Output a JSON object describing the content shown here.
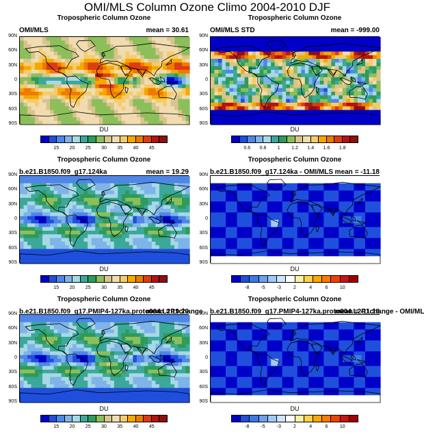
{
  "figure_title": "OMI/MLS Column Ozone Climo 2004-2010 DJF",
  "panels": [
    {
      "title": "Tropospheric Column Ozone",
      "left": "OMI/MLS",
      "right": "mean =  30.61",
      "units": "DU",
      "scale": "a",
      "pattern": "obs"
    },
    {
      "title": "Tropospheric Column Ozone",
      "left": "OMI/MLS STD",
      "right": "mean = -999.00",
      "units": "DU",
      "scale": "b",
      "pattern": "std"
    },
    {
      "title": "Tropospheric Column Ozone",
      "left": "b.e21.B1850.f09_g17.124ka",
      "right": "mean =  19.29",
      "units": "DU",
      "scale": "a",
      "pattern": "model"
    },
    {
      "title": "Tropospheric Column Ozone",
      "left": "b.e21.B1850.f09_g17.124ka - OMI/MLS",
      "right": "mean = -11.18",
      "units": "DU",
      "scale": "c",
      "pattern": "diff"
    },
    {
      "title": "Tropospheric Column Ozone",
      "left": "b.e21.B1850.f09_g17.PMIP4-127ka.proto004.L2P1change",
      "right": "mean =  19.29",
      "units": "DU",
      "scale": "a",
      "pattern": "model"
    },
    {
      "title": "Tropospheric Column Ozone",
      "left": "b.e21.B1850.f09_g17.PMIP4-127ka.proto004.L2P1change - OMI/ML",
      "right": "mean = -11.18",
      "units": "DU",
      "scale": "c",
      "pattern": "diff"
    }
  ],
  "lat_labels": [
    "90N",
    "60N",
    "30N",
    "0",
    "30S",
    "60S",
    "90S"
  ],
  "colorbars": {
    "a": {
      "labels": [
        "15",
        "20",
        "25",
        "30",
        "35",
        "40",
        "45"
      ],
      "colors": [
        "#0000c8",
        "#1f4fdc",
        "#4f86e8",
        "#7fb4e8",
        "#a8d8e6",
        "#3ca89a",
        "#2f9a5a",
        "#8cbf5a",
        "#d8c48c",
        "#f0dcb0",
        "#f5cc6a",
        "#f5a800",
        "#f07a00",
        "#dc3c14",
        "#b41414",
        "#8c1010"
      ]
    },
    "b": {
      "labels": [
        "0.6",
        "0.8",
        "1",
        "1.2",
        "1.4",
        "1.6",
        "1.8"
      ],
      "colors": [
        "#0000c8",
        "#1f4fdc",
        "#4f86e8",
        "#7fb4e8",
        "#a8d8e6",
        "#3ca89a",
        "#2f9a5a",
        "#8cbf5a",
        "#d8c48c",
        "#f0dcb0",
        "#f5cc6a",
        "#f5a800",
        "#f07a00",
        "#dc3c14",
        "#b41414",
        "#8c1010"
      ]
    },
    "c": {
      "labels": [
        "-8",
        "-5",
        "-3",
        "2",
        "4",
        "6",
        "10"
      ],
      "colors": [
        "#0000c8",
        "#1f50dc",
        "#3c78e6",
        "#6ea0f0",
        "#a0c8f8",
        "#cce6fa",
        "#ffffff",
        "#fff0a0",
        "#ffd24a",
        "#ffa800",
        "#ff7800",
        "#f04000",
        "#c81414",
        "#a00000"
      ]
    }
  },
  "chart_data": [
    {
      "type": "heatmap",
      "title": "Tropospheric Column Ozone",
      "subtitle": "OMI/MLS",
      "mean": 30.61,
      "units": "DU",
      "ylabel_ticks": [
        "90N",
        "60N",
        "30N",
        "0",
        "30S",
        "60S",
        "90S"
      ],
      "levels": [
        15,
        20,
        25,
        30,
        35,
        40,
        45
      ]
    },
    {
      "type": "heatmap",
      "title": "Tropospheric Column Ozone",
      "subtitle": "OMI/MLS STD",
      "mean": -999.0,
      "units": "DU",
      "ylabel_ticks": [
        "90N",
        "60N",
        "30N",
        "0",
        "30S",
        "60S",
        "90S"
      ],
      "levels": [
        0.6,
        0.8,
        1,
        1.2,
        1.4,
        1.6,
        1.8
      ]
    },
    {
      "type": "heatmap",
      "title": "Tropospheric Column Ozone",
      "subtitle": "b.e21.B1850.f09_g17.124ka",
      "mean": 19.29,
      "units": "DU",
      "ylabel_ticks": [
        "90N",
        "60N",
        "30N",
        "0",
        "30S",
        "60S",
        "90S"
      ],
      "levels": [
        15,
        20,
        25,
        30,
        35,
        40,
        45
      ]
    },
    {
      "type": "heatmap",
      "title": "Tropospheric Column Ozone",
      "subtitle": "b.e21.B1850.f09_g17.124ka - OMI/MLS",
      "mean": -11.18,
      "units": "DU",
      "ylabel_ticks": [
        "90N",
        "60N",
        "30N",
        "0",
        "30S",
        "60S",
        "90S"
      ],
      "levels": [
        -8,
        -5,
        -3,
        2,
        4,
        6,
        10
      ]
    },
    {
      "type": "heatmap",
      "title": "Tropospheric Column Ozone",
      "subtitle": "b.e21.B1850.f09_g17.PMIP4-127ka.proto004.L2P1change",
      "mean": 19.29,
      "units": "DU",
      "ylabel_ticks": [
        "90N",
        "60N",
        "30N",
        "0",
        "30S",
        "60S",
        "90S"
      ],
      "levels": [
        15,
        20,
        25,
        30,
        35,
        40,
        45
      ]
    },
    {
      "type": "heatmap",
      "title": "Tropospheric Column Ozone",
      "subtitle": "b.e21.B1850.f09_g17.PMIP4-127ka.proto004.L2P1change - OMI/ML",
      "mean": -11.18,
      "units": "DU",
      "ylabel_ticks": [
        "90N",
        "60N",
        "30N",
        "0",
        "30S",
        "60S",
        "90S"
      ],
      "levels": [
        -8,
        -5,
        -3,
        2,
        4,
        6,
        10
      ]
    }
  ]
}
